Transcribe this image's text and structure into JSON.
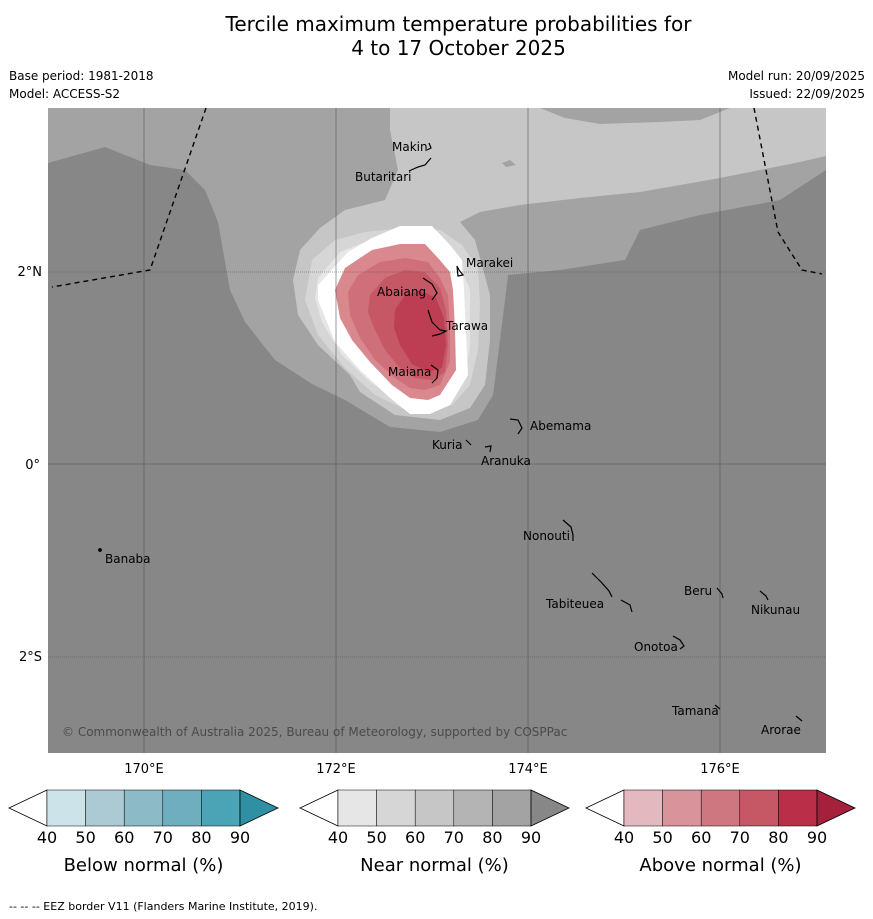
{
  "title": {
    "line1": "Tercile maximum temperature probabilities for",
    "line2": "4 to 17 October 2025"
  },
  "meta": {
    "base_period": "Base period: 1981-2018",
    "model": "Model: ACCESS-S2",
    "model_run": "Model run: 20/09/2025",
    "issued": "Issued: 22/09/2025"
  },
  "map": {
    "lat_labels": [
      "2°N",
      "0°",
      "2°S"
    ],
    "lon_labels": [
      "170°E",
      "172°E",
      "174°E",
      "176°E"
    ],
    "islands": [
      "Makin",
      "Butaritari",
      "Marakei",
      "Abaiang",
      "Tarawa",
      "Maiana",
      "Abemama",
      "Kuria",
      "Aranuka",
      "Nonouti",
      "Banaba",
      "Tabiteuea",
      "Beru",
      "Nikunau",
      "Onotoa",
      "Tamana",
      "Arorae"
    ],
    "copyright": "© Commonwealth of Australia 2025, Bureau of Meteorology, supported by COSPPac",
    "colors": {
      "background": "#878787",
      "near50": "#a3a3a3",
      "near60": "#c6c6c6",
      "near70": "#d6d6d6",
      "near80": "#e6e6e6",
      "white": "#ffffff",
      "above40": "#d9888e",
      "above50": "#cf6f79",
      "above60": "#c65866",
      "above70": "#bd3e52"
    }
  },
  "colorbars": [
    {
      "title": "Below normal (%)",
      "ticks": [
        "40",
        "50",
        "60",
        "70",
        "80",
        "90"
      ],
      "colors": [
        "#ffffff",
        "#cde3ea",
        "#abcad3",
        "#8cbac7",
        "#6eaebe",
        "#4ba4b5",
        "#2f8fa3"
      ]
    },
    {
      "title": "Near normal (%)",
      "ticks": [
        "40",
        "50",
        "60",
        "70",
        "80",
        "90"
      ],
      "colors": [
        "#ffffff",
        "#e6e6e6",
        "#d6d6d6",
        "#c6c6c6",
        "#b4b4b4",
        "#a3a3a3",
        "#878787"
      ]
    },
    {
      "title": "Above normal (%)",
      "ticks": [
        "40",
        "50",
        "60",
        "70",
        "80",
        "90"
      ],
      "colors": [
        "#ffffff",
        "#e4b8bf",
        "#d9939b",
        "#cf7780",
        "#c65866",
        "#bb2e47",
        "#a5213b"
      ]
    }
  ],
  "footnote": "--  --  -- EEZ border V11 (Flanders Marine Institute, 2019)."
}
